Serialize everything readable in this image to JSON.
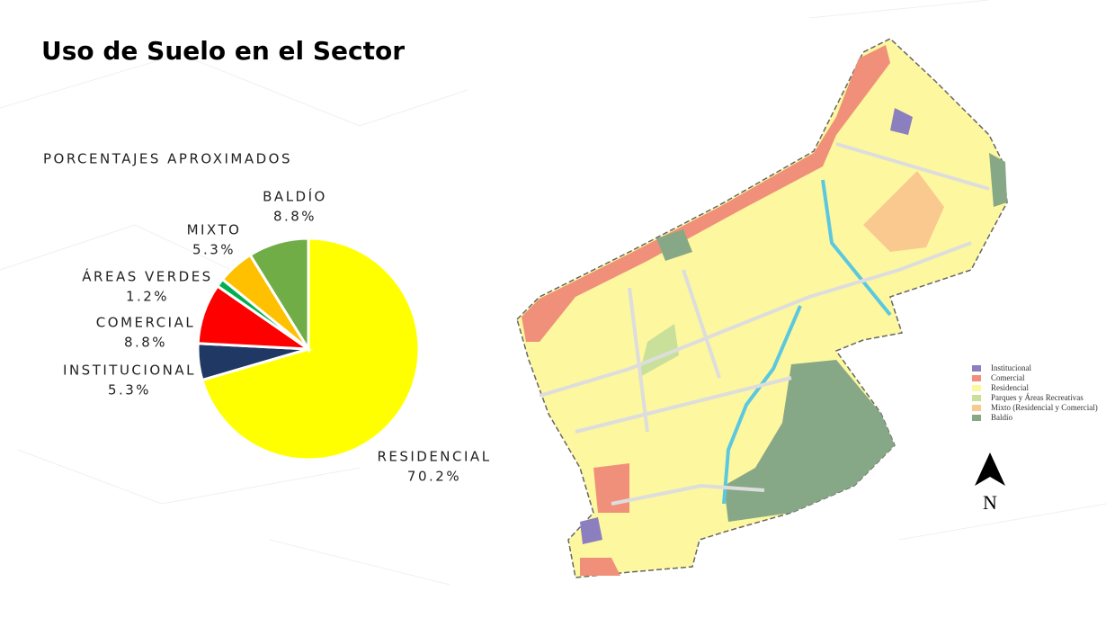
{
  "chart_data": {
    "type": "pie",
    "title": "Uso de Suelo en el Sector",
    "subtitle": "PORCENTAJES APROXIMADOS",
    "categories": [
      "RESIDENCIAL",
      "INSTITUCIONAL",
      "COMERCIAL",
      "ÁREAS VERDES",
      "MIXTO",
      "BALDÍO"
    ],
    "values": [
      70.2,
      5.3,
      8.8,
      1.2,
      5.3,
      8.8
    ],
    "value_labels": [
      "70.2%",
      "5.3%",
      "8.8%",
      "1.2%",
      "5.3%",
      "8.8%"
    ],
    "colors": [
      "#ffff00",
      "#1f3864",
      "#ff0000",
      "#00b050",
      "#ffc000",
      "#70ad47"
    ]
  },
  "map": {
    "legend": [
      {
        "label": "Institucional",
        "color": "#8b7fbf"
      },
      {
        "label": "Comercial",
        "color": "#f0907a"
      },
      {
        "label": "Residencial",
        "color": "#fdf7a0"
      },
      {
        "label": "Parques y Áreas Recreativas",
        "color": "#c9e09a"
      },
      {
        "label": "Mixto (Residencial y Comercial)",
        "color": "#f9c98f"
      },
      {
        "label": "Baldío",
        "color": "#86a886"
      }
    ],
    "north": "N"
  }
}
